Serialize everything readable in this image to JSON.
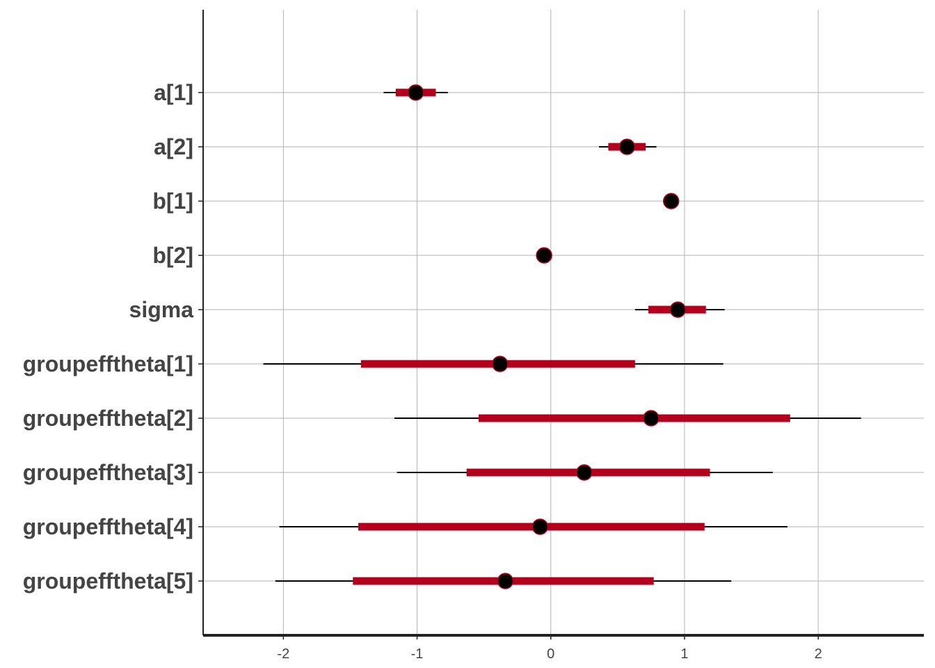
{
  "chart_data": {
    "type": "interval",
    "title": "",
    "xlabel": "",
    "ylabel": "",
    "xlim": [
      -2.6,
      2.79
    ],
    "x_ticks": [
      -2,
      -1,
      0,
      1,
      2
    ],
    "x_tick_labels": [
      "-2",
      "-1",
      "0",
      "1",
      "2"
    ],
    "grid": true,
    "colors": {
      "inner_interval": "#b2001d",
      "outer_interval": "#000000",
      "point": "#000000",
      "grid": "#b3b3b3",
      "axis": "#222222",
      "text": "#444444"
    },
    "parameters": [
      {
        "label": "a[1]",
        "median": -1.01,
        "inner": [
          -1.16,
          -0.86
        ],
        "outer": [
          -1.25,
          -0.77
        ]
      },
      {
        "label": "a[2]",
        "median": 0.57,
        "inner": [
          0.43,
          0.71
        ],
        "outer": [
          0.36,
          0.79
        ]
      },
      {
        "label": "b[1]",
        "median": 0.9,
        "inner": [
          0.89,
          0.91
        ],
        "outer": [
          0.88,
          0.92
        ]
      },
      {
        "label": "b[2]",
        "median": -0.05,
        "inner": [
          -0.06,
          -0.04
        ],
        "outer": [
          -0.07,
          -0.03
        ]
      },
      {
        "label": "sigma",
        "median": 0.95,
        "inner": [
          0.73,
          1.16
        ],
        "outer": [
          0.63,
          1.3
        ]
      },
      {
        "label": "groupefftheta[1]",
        "median": -0.38,
        "inner": [
          -1.42,
          0.63
        ],
        "outer": [
          -2.15,
          1.29
        ]
      },
      {
        "label": "groupefftheta[2]",
        "median": 0.75,
        "inner": [
          -0.54,
          1.79
        ],
        "outer": [
          -1.17,
          2.32
        ]
      },
      {
        "label": "groupefftheta[3]",
        "median": 0.25,
        "inner": [
          -0.63,
          1.19
        ],
        "outer": [
          -1.15,
          1.66
        ]
      },
      {
        "label": "groupefftheta[4]",
        "median": -0.08,
        "inner": [
          -1.44,
          1.15
        ],
        "outer": [
          -2.03,
          1.77
        ]
      },
      {
        "label": "groupefftheta[5]",
        "median": -0.34,
        "inner": [
          -1.48,
          0.77
        ],
        "outer": [
          -2.06,
          1.35
        ]
      }
    ]
  }
}
